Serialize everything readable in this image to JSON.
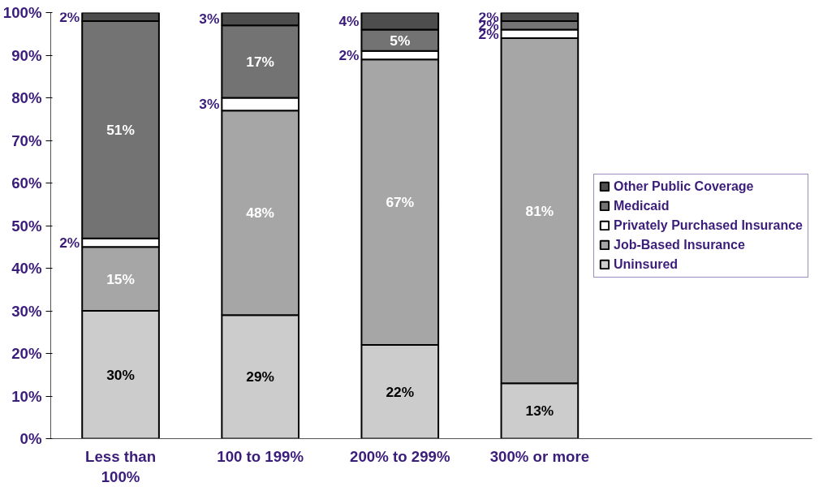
{
  "chart_data": {
    "type": "bar",
    "stacked": true,
    "categories": [
      "Less than 100%",
      "100 to 199%",
      "200% to 299%",
      "300% or more"
    ],
    "series": [
      {
        "name": "Uninsured",
        "color": "#cccccc",
        "values": [
          30,
          29,
          22,
          13
        ],
        "value_labels": [
          "30%",
          "29%",
          "22%",
          "13%"
        ]
      },
      {
        "name": "Job-Based Insurance",
        "color": "#a6a6a6",
        "values": [
          15,
          48,
          67,
          81
        ],
        "value_labels": [
          "15%",
          "48%",
          "67%",
          "81%"
        ]
      },
      {
        "name": "Privately Purchased Insurance",
        "color": "#ffffff",
        "values": [
          2,
          3,
          2,
          2
        ],
        "value_labels": [
          "2%",
          "3%",
          "2%",
          "2%"
        ]
      },
      {
        "name": "Medicaid",
        "color": "#737373",
        "values": [
          51,
          17,
          5,
          2
        ],
        "value_labels": [
          "51%",
          "17%",
          "5%",
          "2%"
        ]
      },
      {
        "name": "Other Public Coverage",
        "color": "#4d4d4d",
        "values": [
          2,
          3,
          4,
          2
        ],
        "value_labels": [
          "2%",
          "3%",
          "4%",
          "2%"
        ]
      }
    ],
    "ylim": [
      0,
      100
    ],
    "yticks": [
      {
        "value": 0,
        "label": "0%"
      },
      {
        "value": 10,
        "label": "10%"
      },
      {
        "value": 20,
        "label": "20%"
      },
      {
        "value": 30,
        "label": "30%"
      },
      {
        "value": 40,
        "label": "40%"
      },
      {
        "value": 50,
        "label": "50%"
      },
      {
        "value": 60,
        "label": "60%"
      },
      {
        "value": 70,
        "label": "70%"
      },
      {
        "value": 80,
        "label": "80%"
      },
      {
        "value": 90,
        "label": "90%"
      },
      {
        "value": 100,
        "label": "100%"
      }
    ],
    "grid": false,
    "legend": "right"
  }
}
